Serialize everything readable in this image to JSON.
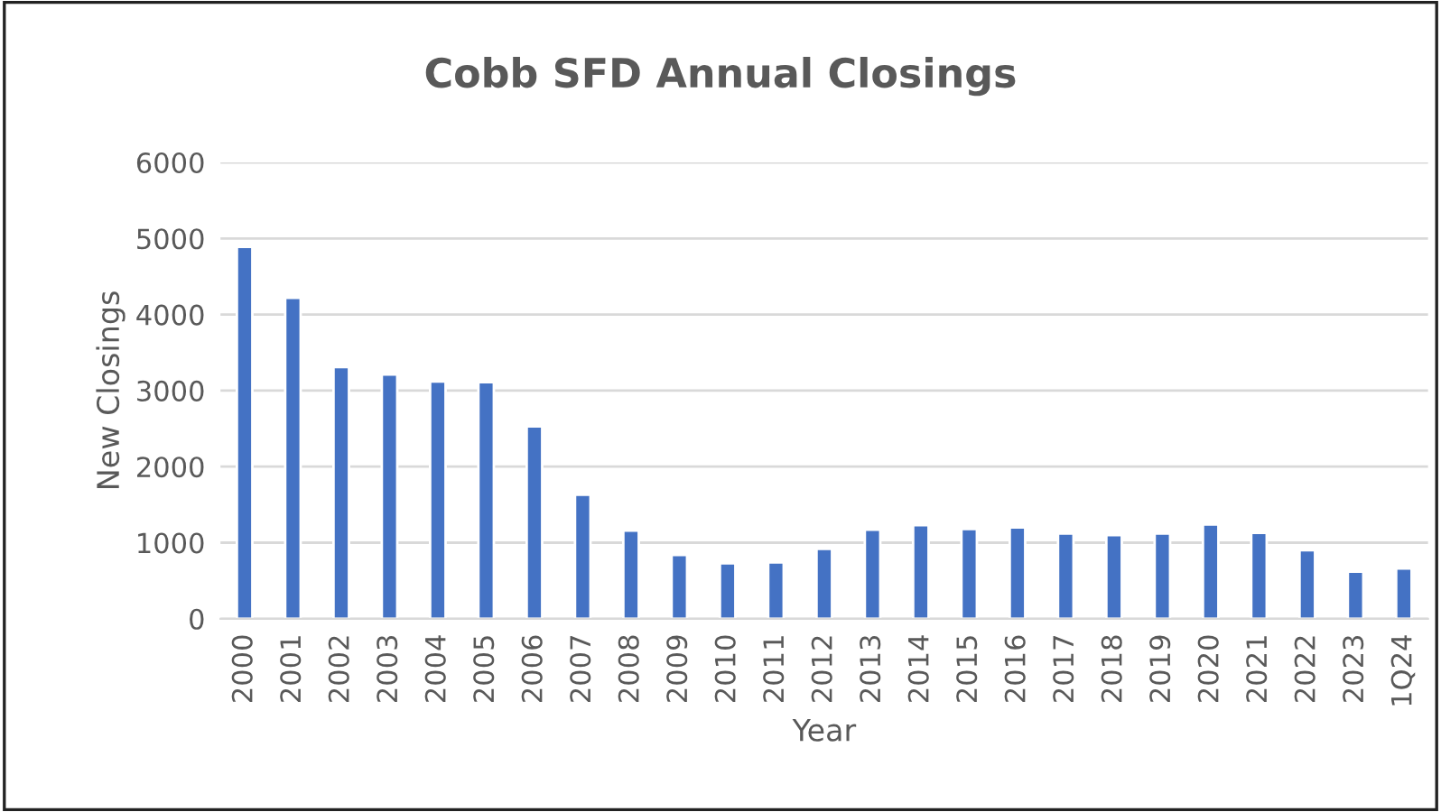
{
  "chart_data": {
    "type": "bar",
    "title": "Cobb SFD Annual Closings",
    "xlabel": "Year",
    "ylabel": "New Closings",
    "categories": [
      "2000",
      "2001",
      "2002",
      "2003",
      "2004",
      "2005",
      "2006",
      "2007",
      "2008",
      "2009",
      "2010",
      "2011",
      "2012",
      "2013",
      "2014",
      "2015",
      "2016",
      "2017",
      "2018",
      "2019",
      "2020",
      "2021",
      "2022",
      "2023",
      "1Q24"
    ],
    "values": [
      4890,
      4220,
      3310,
      3210,
      3120,
      3110,
      2530,
      1630,
      1160,
      840,
      730,
      740,
      920,
      1170,
      1230,
      1180,
      1200,
      1120,
      1100,
      1120,
      1240,
      1130,
      900,
      620,
      660
    ],
    "color": "#4472c4",
    "ylim": [
      0,
      6000
    ],
    "yticks": [
      0,
      1000,
      2000,
      3000,
      4000,
      5000,
      6000
    ],
    "grid": "y",
    "legend": false
  }
}
